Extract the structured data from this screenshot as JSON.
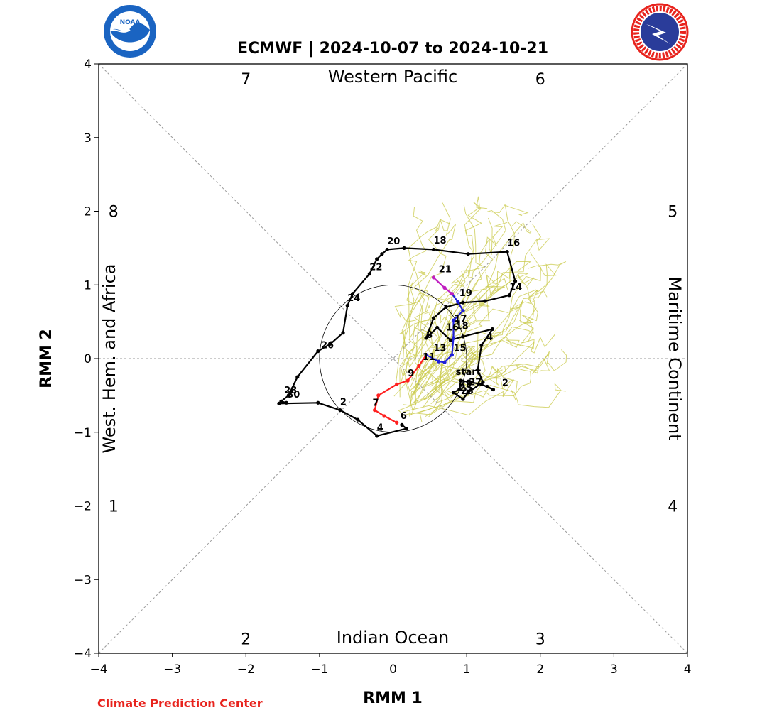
{
  "logos": {
    "left_text": "NOAA",
    "right_text": "NATIONAL WEATHER SERVICE"
  },
  "footer": {
    "credit": "Climate Prediction Center"
  },
  "colors": {
    "ensemble": "#c9c94a",
    "analysis": "#000000",
    "forecast_week1": "#ff2020",
    "forecast_week2": "#1f1fd8",
    "forecast_end": "#c020c0",
    "credit": "#e8231d"
  },
  "chart_data": {
    "type": "line",
    "title": "ECMWF | 2024-10-07 to 2024-10-21",
    "xlabel": "RMM 1",
    "ylabel": "RMM 2",
    "xlim": [
      -4,
      4
    ],
    "ylim": [
      -4,
      4
    ],
    "xticks": [
      "−4",
      "−3",
      "−2",
      "−1",
      "0",
      "1",
      "2",
      "3",
      "4"
    ],
    "yticks": [
      "−4",
      "−3",
      "−2",
      "−1",
      "0",
      "1",
      "2",
      "3",
      "4"
    ],
    "region_labels": {
      "top": "Western Pacific",
      "bottom": "Indian Ocean",
      "left": "West. Hem. and Africa",
      "right": "Maritime Continent"
    },
    "phase_labels": [
      {
        "text": "1",
        "x": -3.8,
        "y": -2
      },
      {
        "text": "2",
        "x": -2,
        "y": -3.8
      },
      {
        "text": "3",
        "x": 2,
        "y": -3.8
      },
      {
        "text": "4",
        "x": 3.8,
        "y": -2
      },
      {
        "text": "5",
        "x": 3.8,
        "y": 2
      },
      {
        "text": "6",
        "x": 2,
        "y": 3.8
      },
      {
        "text": "7",
        "x": -2,
        "y": 3.8
      },
      {
        "text": "8",
        "x": -3.8,
        "y": 2
      }
    ],
    "grid": "dashed diagonals and axes",
    "unit_circle_radius": 1,
    "series": [
      {
        "role": "observed_analysis",
        "color": "#000000",
        "points": [
          {
            "x": 1.28,
            "y": -0.38
          },
          {
            "x": 1.36,
            "y": -0.42
          },
          {
            "x": 1.2,
            "y": -0.35
          },
          {
            "x": 1.05,
            "y": -0.32
          },
          {
            "x": 0.92,
            "y": -0.3
          },
          {
            "x": 0.9,
            "y": -0.42
          },
          {
            "x": 0.82,
            "y": -0.46
          },
          {
            "x": 0.95,
            "y": -0.55
          },
          {
            "x": 1.02,
            "y": -0.46
          },
          {
            "x": 1.22,
            "y": -0.32
          },
          {
            "x": 1.15,
            "y": -0.15
          },
          {
            "x": 1.2,
            "y": 0.18
          },
          {
            "x": 1.35,
            "y": 0.4
          },
          {
            "x": 0.95,
            "y": 0.3
          },
          {
            "x": 0.78,
            "y": 0.25
          },
          {
            "x": 0.6,
            "y": 0.42
          },
          {
            "x": 0.45,
            "y": 0.28
          },
          {
            "x": 0.55,
            "y": 0.55
          },
          {
            "x": 0.72,
            "y": 0.7
          },
          {
            "x": 0.95,
            "y": 0.76
          },
          {
            "x": 1.25,
            "y": 0.78
          },
          {
            "x": 1.58,
            "y": 0.86
          },
          {
            "x": 1.66,
            "y": 1.05
          },
          {
            "x": 1.55,
            "y": 1.45
          },
          {
            "x": 1.02,
            "y": 1.42
          },
          {
            "x": 0.55,
            "y": 1.48
          },
          {
            "x": 0.15,
            "y": 1.5
          },
          {
            "x": -0.08,
            "y": 1.48
          },
          {
            "x": -0.15,
            "y": 1.42
          },
          {
            "x": -0.22,
            "y": 1.35
          },
          {
            "x": -0.32,
            "y": 1.15
          },
          {
            "x": -0.55,
            "y": 0.88
          },
          {
            "x": -0.62,
            "y": 0.72
          },
          {
            "x": -0.68,
            "y": 0.35
          },
          {
            "x": -0.85,
            "y": 0.2
          },
          {
            "x": -1.02,
            "y": 0.1
          },
          {
            "x": -1.3,
            "y": -0.25
          },
          {
            "x": -1.42,
            "y": -0.5
          },
          {
            "x": -1.52,
            "y": -0.58
          },
          {
            "x": -1.45,
            "y": -0.6
          },
          {
            "x": -1.55,
            "y": -0.61
          },
          {
            "x": -1.02,
            "y": -0.6
          },
          {
            "x": -0.72,
            "y": -0.7
          },
          {
            "x": -0.48,
            "y": -0.83
          },
          {
            "x": -0.22,
            "y": -1.05
          },
          {
            "x": 0.18,
            "y": -0.95
          },
          {
            "x": 0.12,
            "y": -0.9
          }
        ],
        "point_labels": [
          {
            "text": "start",
            "x": 0.85,
            "y": -0.22
          },
          {
            "text": "2",
            "x": 1.48,
            "y": -0.37
          },
          {
            "text": "2",
            "x": -0.72,
            "y": -0.63
          },
          {
            "text": "4",
            "x": 1.27,
            "y": 0.25
          },
          {
            "text": "4",
            "x": -0.22,
            "y": -0.98
          },
          {
            "text": "6",
            "x": 0.1,
            "y": -0.82
          },
          {
            "text": "8",
            "x": 0.45,
            "y": 0.28
          },
          {
            "text": "14",
            "x": 1.58,
            "y": 0.93
          },
          {
            "text": "16",
            "x": 1.55,
            "y": 1.53
          },
          {
            "text": "18",
            "x": 0.55,
            "y": 1.56
          },
          {
            "text": "20",
            "x": -0.08,
            "y": 1.55
          },
          {
            "text": "22",
            "x": -0.32,
            "y": 1.2
          },
          {
            "text": "24",
            "x": -0.62,
            "y": 0.78
          },
          {
            "text": "26",
            "x": -0.98,
            "y": 0.14
          },
          {
            "text": "28",
            "x": -1.48,
            "y": -0.47
          },
          {
            "text": "30",
            "x": -1.44,
            "y": -0.53
          },
          {
            "text": "27",
            "x": 1.03,
            "y": -0.36
          },
          {
            "text": "29",
            "x": 0.9,
            "y": -0.38
          },
          {
            "text": "25",
            "x": 0.9,
            "y": -0.44
          },
          {
            "text": "23",
            "x": 0.92,
            "y": -0.48
          }
        ]
      },
      {
        "role": "forecast_days_1_7",
        "color": "#ff2020",
        "points": [
          {
            "x": 0.05,
            "y": -0.87
          },
          {
            "x": -0.12,
            "y": -0.78
          },
          {
            "x": -0.25,
            "y": -0.7
          },
          {
            "x": -0.2,
            "y": -0.5
          },
          {
            "x": 0.05,
            "y": -0.35
          },
          {
            "x": 0.2,
            "y": -0.3
          },
          {
            "x": 0.35,
            "y": -0.1
          },
          {
            "x": 0.45,
            "y": 0.05
          }
        ],
        "point_labels": [
          {
            "text": "7",
            "x": -0.28,
            "y": -0.64
          },
          {
            "text": "9",
            "x": 0.2,
            "y": -0.24
          }
        ]
      },
      {
        "role": "forecast_days_8_14",
        "color": "#1f1fd8",
        "points": [
          {
            "x": 0.45,
            "y": 0.05
          },
          {
            "x": 0.62,
            "y": -0.04
          },
          {
            "x": 0.7,
            "y": -0.05
          },
          {
            "x": 0.8,
            "y": 0.05
          },
          {
            "x": 0.82,
            "y": 0.28
          },
          {
            "x": 0.82,
            "y": 0.52
          },
          {
            "x": 0.95,
            "y": 0.65
          },
          {
            "x": 0.88,
            "y": 0.77
          },
          {
            "x": 0.8,
            "y": 0.88
          }
        ],
        "point_labels": [
          {
            "text": "11",
            "x": 0.4,
            "y": -0.02
          },
          {
            "text": "13",
            "x": 0.55,
            "y": 0.1
          },
          {
            "text": "15",
            "x": 0.82,
            "y": 0.1
          },
          {
            "text": "16",
            "x": 0.72,
            "y": 0.38
          },
          {
            "text": "17",
            "x": 0.83,
            "y": 0.5
          },
          {
            "text": "18",
            "x": 0.85,
            "y": 0.4
          },
          {
            "text": "19",
            "x": 0.9,
            "y": 0.85
          }
        ]
      },
      {
        "role": "forecast_days_15_21",
        "color": "#c020c0",
        "points": [
          {
            "x": 0.8,
            "y": 0.88
          },
          {
            "x": 0.7,
            "y": 0.96
          },
          {
            "x": 0.55,
            "y": 1.1
          }
        ],
        "point_labels": [
          {
            "text": "21",
            "x": 0.62,
            "y": 1.17
          }
        ]
      }
    ],
    "ensemble_members_note_count": 50
  }
}
